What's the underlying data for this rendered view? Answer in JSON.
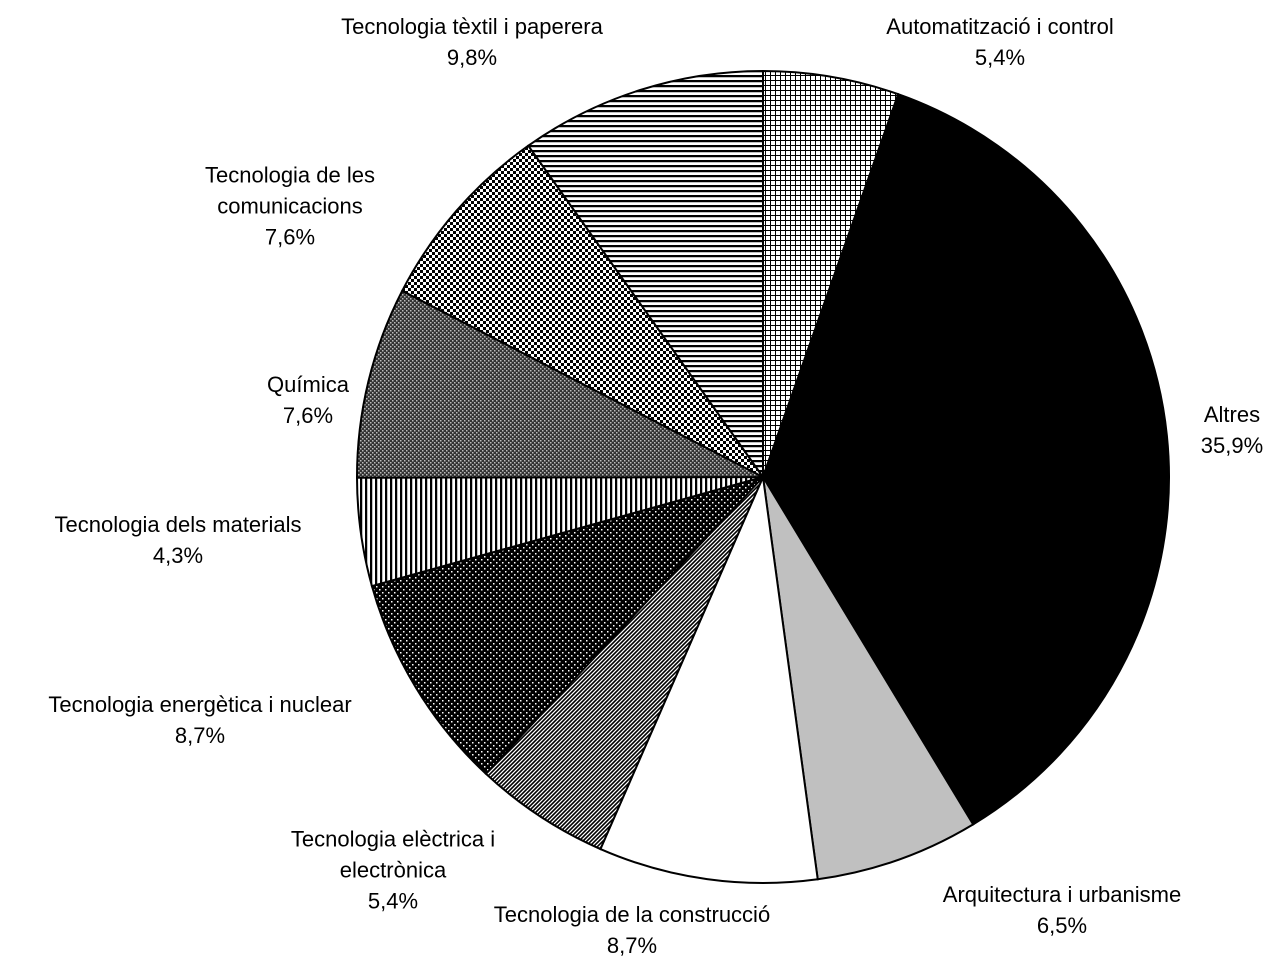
{
  "chart_data": {
    "type": "pie",
    "categories": [
      "Automatització i control",
      "Altres",
      "Arquitectura i urbanisme",
      "Tecnologia de la construcció",
      "Tecnologia elèctrica i electrònica",
      "Tecnologia energètica i nuclear",
      "Tecnologia dels materials",
      "Química",
      "Tecnologia de les comunicacions",
      "Tecnologia tèxtil i paperera"
    ],
    "values": [
      5.4,
      35.9,
      6.5,
      8.7,
      5.4,
      8.7,
      4.3,
      7.6,
      7.6,
      9.8
    ],
    "value_labels": [
      "5,4%",
      "35,9%",
      "6,5%",
      "8,7%",
      "5,4%",
      "8,7%",
      "4,3%",
      "7,6%",
      "7,6%",
      "9,8%"
    ]
  }
}
